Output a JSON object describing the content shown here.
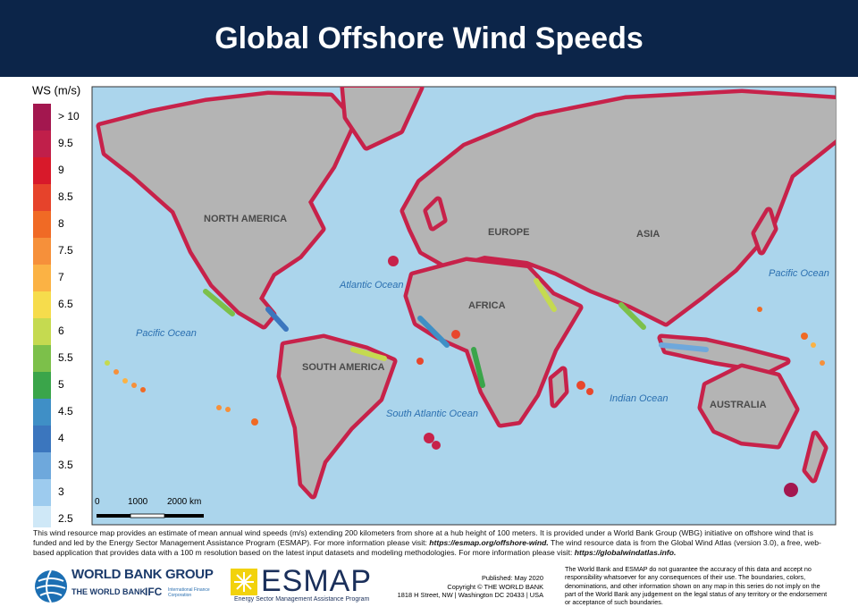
{
  "header": {
    "title": "Global Offshore Wind Speeds"
  },
  "legend": {
    "title": "WS (m/s)",
    "items": [
      {
        "label": "> 10",
        "color": "#a3174f"
      },
      {
        "label": "9.5",
        "color": "#c01f4a"
      },
      {
        "label": "9",
        "color": "#d8192a"
      },
      {
        "label": "8.5",
        "color": "#e6432b"
      },
      {
        "label": "8",
        "color": "#f06a25"
      },
      {
        "label": "7.5",
        "color": "#f6903a"
      },
      {
        "label": "7",
        "color": "#fbb244"
      },
      {
        "label": "6.5",
        "color": "#f6dc4c"
      },
      {
        "label": "6",
        "color": "#c5da50"
      },
      {
        "label": "5.5",
        "color": "#7cc04a"
      },
      {
        "label": "5",
        "color": "#3aa54a"
      },
      {
        "label": "4.5",
        "color": "#3f8fc6"
      },
      {
        "label": "4",
        "color": "#3b76be"
      },
      {
        "label": "3.5",
        "color": "#6ea8dc"
      },
      {
        "label": "3",
        "color": "#9dcbee"
      },
      {
        "label": "2.5",
        "color": "#cfe8f7"
      }
    ]
  },
  "map": {
    "labels": {
      "north_america": "NORTH AMERICA",
      "south_america": "SOUTH AMERICA",
      "europe": "EUROPE",
      "africa": "AFRICA",
      "asia": "ASIA",
      "australia": "AUSTRALIA",
      "atlantic": "Atlantic Ocean",
      "pacific_west": "Pacific Ocean",
      "pacific_east": "Pacific Ocean",
      "south_atlantic": "South Atlantic Ocean",
      "indian": "Indian Ocean"
    },
    "scale_bar": [
      "0",
      "1000",
      "2000 km"
    ]
  },
  "footer": {
    "text": [
      "This wind resource map provides an estimate of mean annual wind speeds (m/s) extending 200 kilometers from shore at a hub height of 100 meters. It is provided under a World Bank Group (WBG) initiative on offshore wind that is funded and led by the Energy Sector Management Assistance Program (ESMAP). For more information please visit: ",
      " The wind resource data is from the Global Wind Atlas (version 3.0), a free, web-based application that provides data with a 100 m resolution based on the latest input datasets and modeling methodologies. For more information please visit: "
    ],
    "links": [
      "https://esmap.org/offshore-wind.",
      "https://globalwindatlas.info."
    ]
  },
  "logos": {
    "wbg": "WORLD BANK GROUP",
    "wb": "THE WORLD BANK",
    "ifc": "IFC",
    "ifc_sub": "International Finance Corporation",
    "esmap": "ESMAP",
    "esmap_sub": "Energy Sector Management Assistance Program"
  },
  "publication": [
    "Published: May 2020",
    "Copyright © THE WORLD BANK",
    "1818 H Street, NW | Washington DC 20433 | USA"
  ],
  "disclaimer": "The World Bank and ESMAP do not guarantee the accuracy of this data and accept no responsibility whatsoever for any consequences of their use. The boundaries, colors, denominations, and other information shown on any map in this series do not imply on the part of the World Bank any judgement on the legal status of any territory or the endorsement or acceptance of such boundaries."
}
